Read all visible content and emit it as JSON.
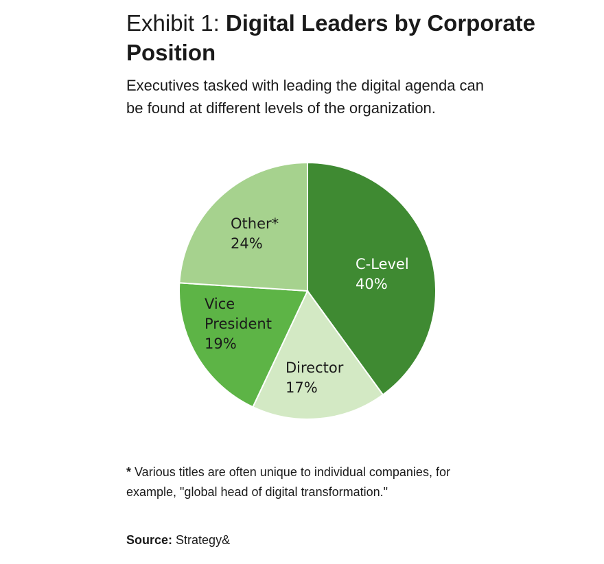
{
  "header": {
    "title_prefix": "Exhibit 1: ",
    "title_main": "Digital Leaders by Corporate Position",
    "subtitle": "Executives tasked with leading the digital agenda can be found at different levels of the organization."
  },
  "chart_data": {
    "type": "pie",
    "title": "Digital Leaders by Corporate Position",
    "slices": [
      {
        "label": "C-Level",
        "value": 40,
        "display": "40%",
        "color": "#3f8a32",
        "text_color": "#ffffff"
      },
      {
        "label": "Director",
        "value": 17,
        "display": "17%",
        "color": "#d3e9c4",
        "text_color": "#1a1a1a"
      },
      {
        "label": "Vice President",
        "value": 19,
        "display": "19%",
        "color": "#5db446",
        "text_color": "#1a1a1a"
      },
      {
        "label": "Other*",
        "value": 24,
        "display": "24%",
        "color": "#a6d28e",
        "text_color": "#1a1a1a"
      }
    ]
  },
  "footnote": {
    "star": "*",
    "text": " Various titles are often unique to individual companies, for example, \"global head of digital transformation.\""
  },
  "source": {
    "label": "Source:",
    "text": " Strategy&"
  }
}
